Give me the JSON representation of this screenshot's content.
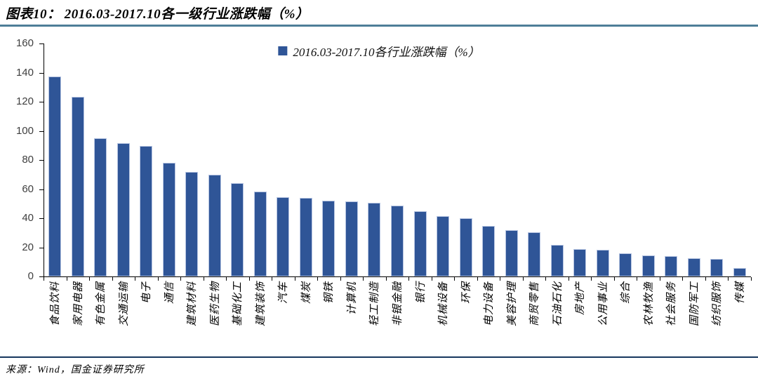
{
  "header": {
    "title": "图表10： 2016.03-2017.10各一级行业涨跌幅（%）"
  },
  "chart_data": {
    "type": "bar",
    "title": "",
    "legend_label": "2016.03-2017.10各行业涨跌幅（%）",
    "legend_position": "top-center",
    "grid": false,
    "ylim": [
      0,
      160
    ],
    "ytick_step": 20,
    "xlabel": "",
    "ylabel": "",
    "categories": [
      "食品饮料",
      "家用电器",
      "有色金属",
      "交通运输",
      "电子",
      "通信",
      "建筑材料",
      "医药生物",
      "基础化工",
      "建筑装饰",
      "汽车",
      "煤炭",
      "钢铁",
      "计算机",
      "轻工制造",
      "非银金融",
      "银行",
      "机械设备",
      "环保",
      "电力设备",
      "美容护理",
      "商贸零售",
      "石油石化",
      "房地产",
      "公用事业",
      "综合",
      "农林牧渔",
      "社会服务",
      "国防军工",
      "纺织服饰",
      "传媒"
    ],
    "values": [
      137.4,
      123.3,
      95.1,
      91.8,
      89.4,
      77.9,
      71.6,
      69.8,
      64.3,
      58.2,
      54.6,
      54.1,
      52.2,
      51.7,
      50.8,
      48.6,
      44.9,
      41.3,
      39.9,
      34.8,
      32.0,
      30.5,
      21.9,
      18.9,
      18.5,
      16.0,
      14.4,
      13.9,
      12.5,
      12.1,
      5.6
    ]
  },
  "footer": {
    "source": "来源：Wind，国金证券研究所"
  },
  "colors": {
    "bar": "#2f5597",
    "bar_border": "#b7c5e2",
    "title_rule": "#4e7e98",
    "footer_rule": "#17375e",
    "axis": "#000000",
    "ytick_text": "#3f3f3f"
  }
}
